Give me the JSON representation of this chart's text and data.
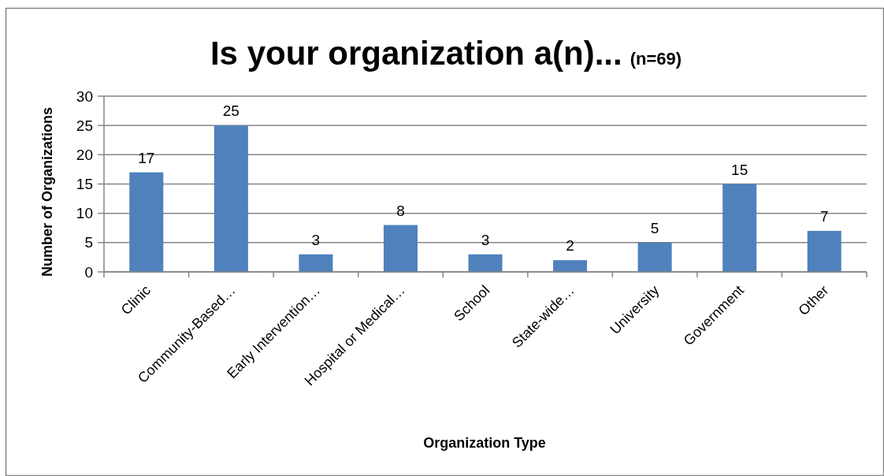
{
  "chart_data": {
    "type": "bar",
    "title": "Is your organization a(n)...",
    "subtitle": "(n=69)",
    "xlabel": "Organization Type",
    "ylabel": "Number of Organizations",
    "categories": [
      "Clinic",
      "Community-Based…",
      "Early Intervention…",
      "Hospital or Medical…",
      "School",
      "State-wide…",
      "University",
      "Government",
      "Other"
    ],
    "values": [
      17,
      25,
      3,
      8,
      3,
      2,
      5,
      15,
      7
    ],
    "color": "#4f81bd",
    "ylim": [
      0,
      30
    ],
    "yticks": [
      0,
      5,
      10,
      15,
      20,
      25,
      30
    ],
    "grid": "y",
    "data_labels": true
  }
}
